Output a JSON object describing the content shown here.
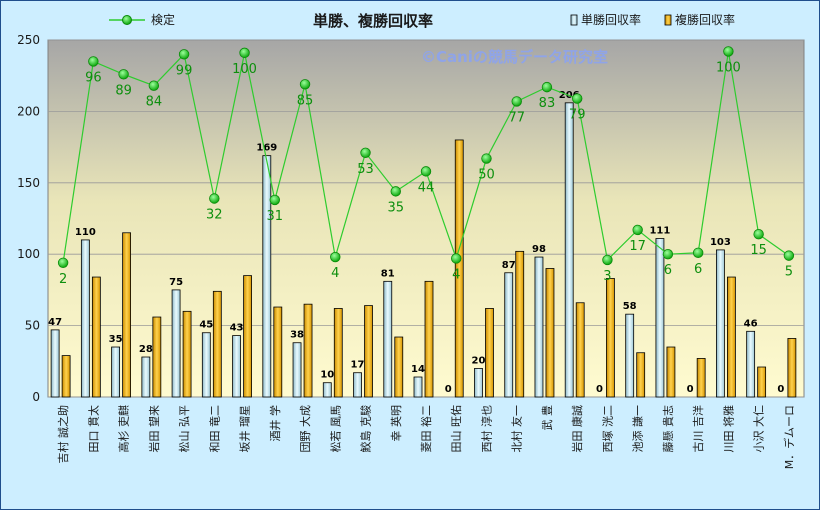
{
  "chart_data": {
    "type": "bar",
    "title": "単勝、複勝回収率",
    "watermark": "©Caniの競馬データ研究室",
    "ylim": [
      0,
      250
    ],
    "yticks": [
      0,
      50,
      100,
      150,
      200,
      250
    ],
    "grid": true,
    "legend_position": "top",
    "categories": [
      "吉村 誠之助",
      "田口 貫太",
      "高杉 吏麒",
      "岩田 望来",
      "松山 弘平",
      "和田 竜二",
      "坂井 瑠星",
      "酒井 学",
      "団野 大成",
      "松若 風馬",
      "鮫島 克駿",
      "幸 英明",
      "菱田 裕二",
      "田山 旺佑",
      "西村 淳也",
      "北村 友一",
      "武 豊",
      "岩田 康誠",
      "西塚 洸二",
      "池添 謙一",
      "藤懸 貴志",
      "古川 吉洋",
      "川田 将雅",
      "小沢 大仁",
      "M．デムーロ"
    ],
    "series": [
      {
        "name": "単勝回収率",
        "kind": "bar",
        "color": "#cdeeff",
        "values": [
          47,
          110,
          35,
          28,
          75,
          45,
          43,
          169,
          38,
          10,
          17,
          81,
          14,
          0,
          20,
          87,
          98,
          206,
          0,
          58,
          111,
          0,
          103,
          46,
          0
        ]
      },
      {
        "name": "複勝回収率",
        "kind": "bar",
        "color": "#f4b400",
        "values": [
          29,
          84,
          115,
          56,
          60,
          74,
          85,
          63,
          65,
          62,
          64,
          42,
          81,
          180,
          62,
          102,
          90,
          66,
          83,
          31,
          35,
          27,
          84,
          21,
          41
        ]
      },
      {
        "name": "検定",
        "kind": "line",
        "color": "#2ecc2e",
        "values": [
          94,
          235,
          226,
          218,
          240,
          139,
          241,
          138,
          219,
          98,
          171,
          144,
          158,
          97,
          167,
          207,
          217,
          209,
          96,
          117,
          100,
          101,
          242,
          114,
          99
        ],
        "labels": [
          2,
          96,
          89,
          84,
          99,
          32,
          100,
          31,
          85,
          4,
          53,
          35,
          44,
          4,
          50,
          77,
          83,
          79,
          3,
          17,
          6,
          6,
          100,
          15,
          5
        ]
      }
    ]
  }
}
